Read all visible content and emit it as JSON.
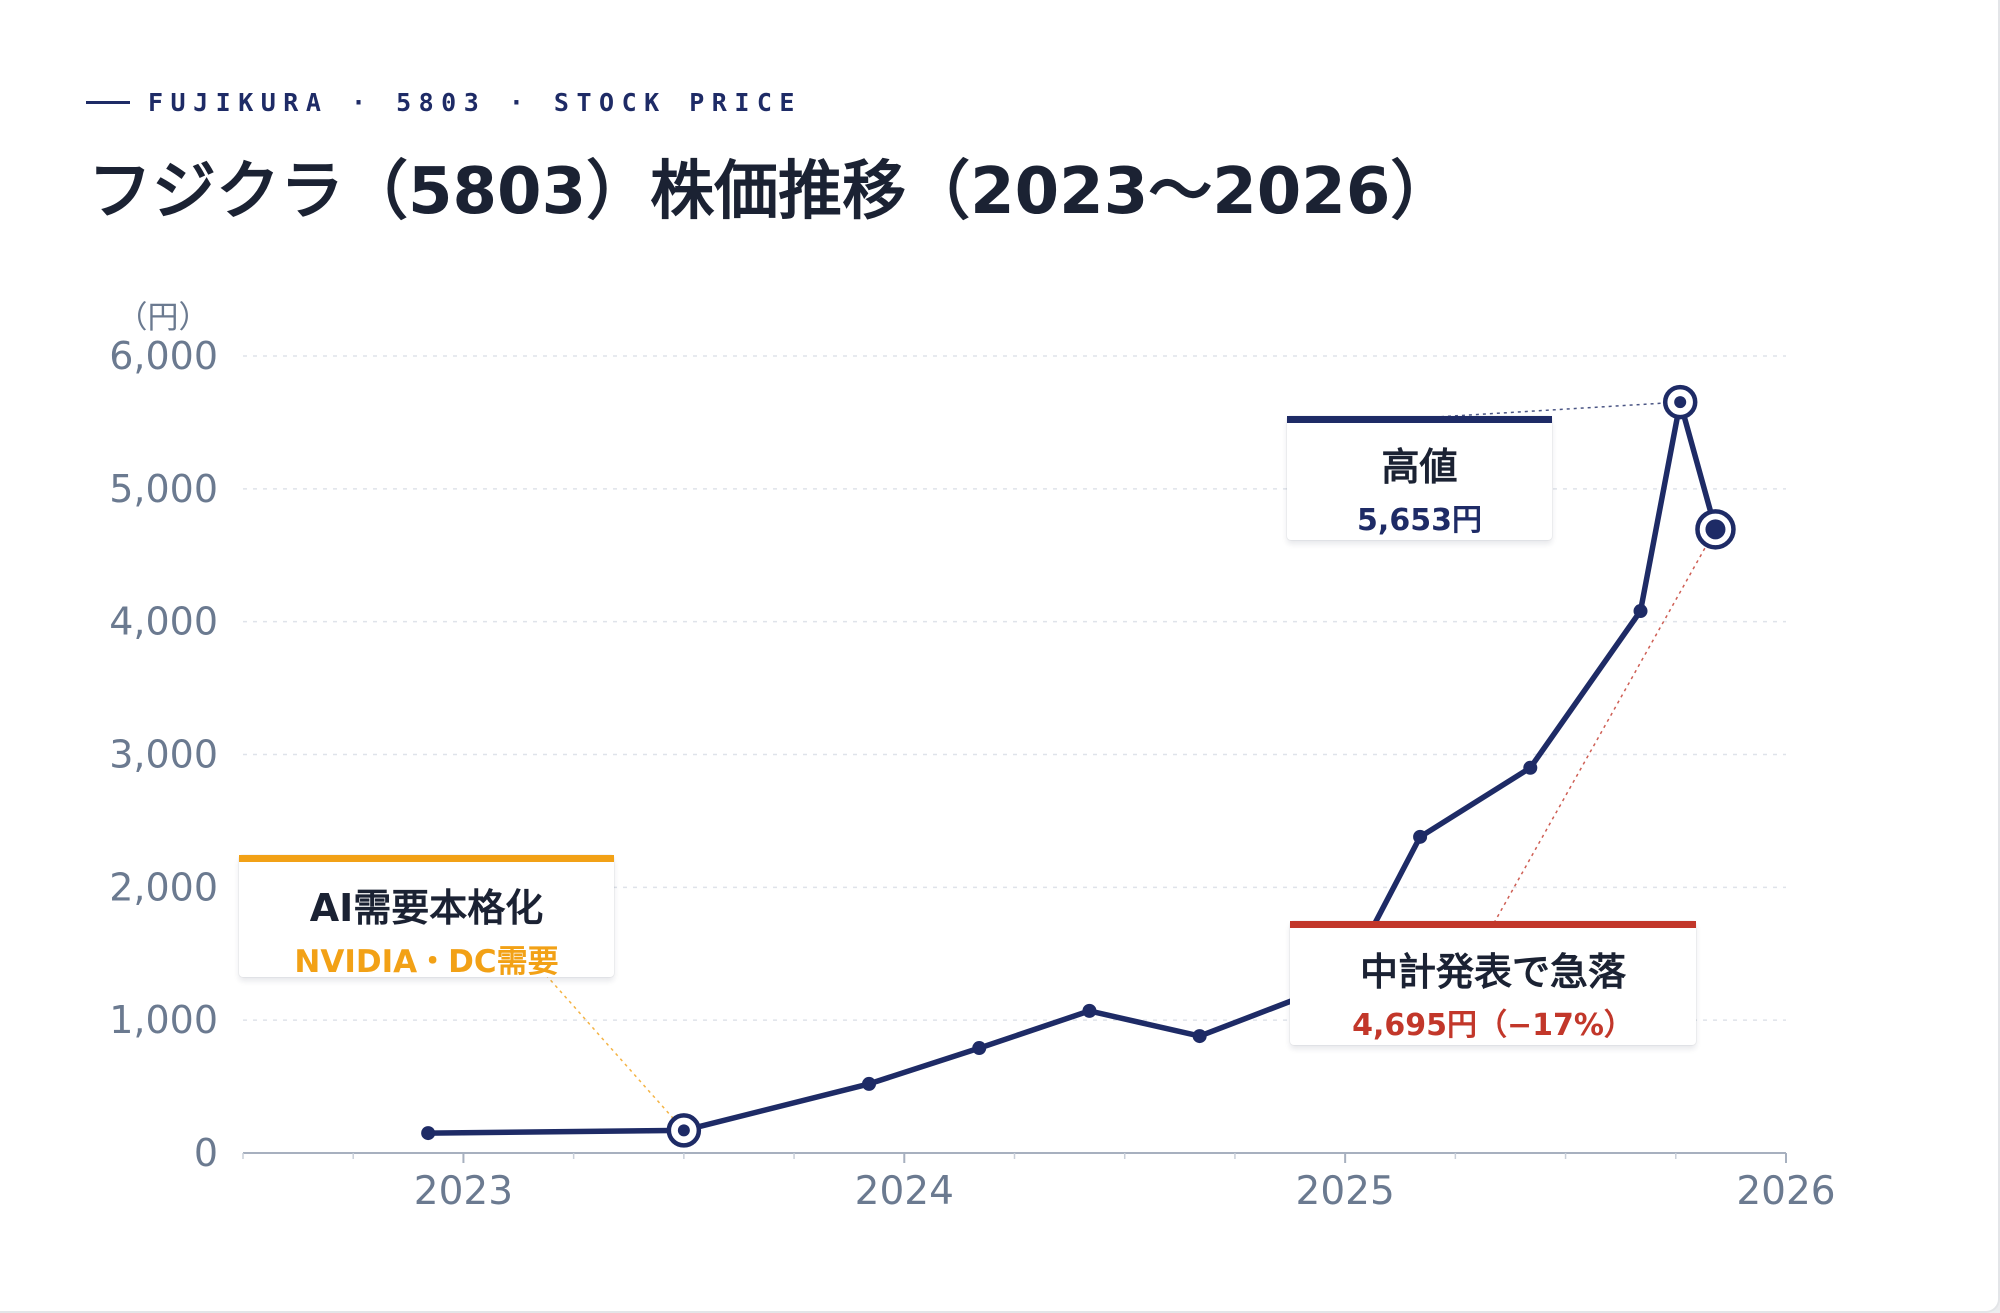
{
  "eyebrow": "FUJIKURA · 5803 · STOCK PRICE",
  "title": "フジクラ（5803）株価推移（2023〜2026）",
  "colors": {
    "line": "#1e2b66",
    "text": "#1b2233",
    "axis": "#6b7a90",
    "grid": "#dfe3ea",
    "ai_accent": "#f2a116",
    "drop_accent": "#c2372a"
  },
  "chart_data": {
    "type": "line",
    "title": "フジクラ（5803）株価推移（2023〜2026）",
    "ylabel": "（円）",
    "xlabel": "",
    "ylim": [
      0,
      6000
    ],
    "xlim": [
      2022.5,
      2026
    ],
    "y_ticks": [
      0,
      1000,
      2000,
      3000,
      4000,
      5000,
      6000
    ],
    "y_tick_labels": [
      "0",
      "1,000",
      "2,000",
      "3,000",
      "4,000",
      "5,000",
      "6,000"
    ],
    "x_ticks": [
      2023,
      2024,
      2025,
      2026
    ],
    "x_tick_labels": [
      "2023",
      "2024",
      "2025",
      "2026"
    ],
    "grid": "horizontal dashed",
    "series": [
      {
        "color": "#1e2b66",
        "points": [
          {
            "x": 2022.92,
            "y": 150
          },
          {
            "x": 2023.5,
            "y": 170
          },
          {
            "x": 2023.92,
            "y": 520
          },
          {
            "x": 2024.17,
            "y": 790
          },
          {
            "x": 2024.42,
            "y": 1070
          },
          {
            "x": 2024.67,
            "y": 880
          },
          {
            "x": 2025.0,
            "y": 1300
          },
          {
            "x": 2025.17,
            "y": 2380
          },
          {
            "x": 2025.42,
            "y": 2900
          },
          {
            "x": 2025.67,
            "y": 4080
          },
          {
            "x": 2025.76,
            "y": 5653
          },
          {
            "x": 2025.84,
            "y": 4695
          }
        ]
      }
    ],
    "annotations": [
      {
        "id": "ai",
        "x": 2023.5,
        "y": 170,
        "title": "AI需要本格化",
        "subtitle": "NVIDIA・DC需要",
        "color": "#f2a116"
      },
      {
        "id": "high",
        "x": 2025.76,
        "y": 5653,
        "title": "高値",
        "subtitle": "5,653円",
        "color": "#1e2b66"
      },
      {
        "id": "drop",
        "x": 2025.84,
        "y": 4695,
        "title": "中計発表で急落",
        "subtitle": "4,695円（−17%）",
        "color": "#c2372a"
      }
    ]
  }
}
